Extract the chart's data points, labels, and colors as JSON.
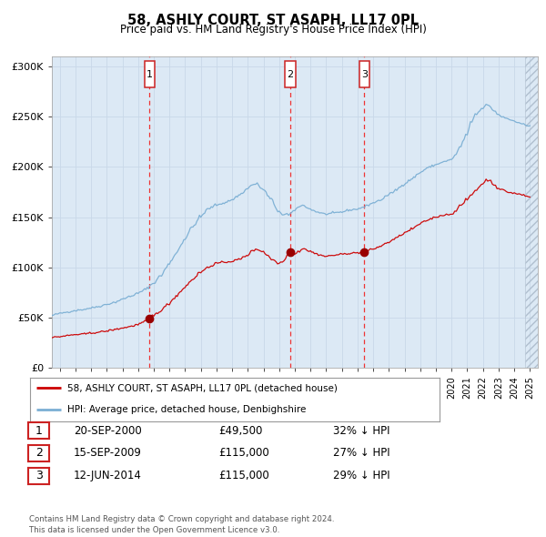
{
  "title": "58, ASHLY COURT, ST ASAPH, LL17 0PL",
  "subtitle": "Price paid vs. HM Land Registry's House Price Index (HPI)",
  "plot_bg_color": "#dce9f5",
  "grid_color": "#c8d8e8",
  "red_line_color": "#cc0000",
  "blue_line_color": "#7bafd4",
  "sale_marker_color": "#990000",
  "vline_color": "#ee3333",
  "ylim": [
    0,
    310000
  ],
  "xlim": [
    1994.5,
    2025.5
  ],
  "yticks": [
    0,
    50000,
    100000,
    150000,
    200000,
    250000,
    300000
  ],
  "ytick_labels": [
    "£0",
    "£50K",
    "£100K",
    "£150K",
    "£200K",
    "£250K",
    "£300K"
  ],
  "sale_points": [
    {
      "date_num": 2000.72,
      "price": 49500,
      "label": "1"
    },
    {
      "date_num": 2009.71,
      "price": 115000,
      "label": "2"
    },
    {
      "date_num": 2014.44,
      "price": 115000,
      "label": "3"
    }
  ],
  "vline_dates": [
    2000.72,
    2009.71,
    2014.44
  ],
  "vline_labels": [
    "1",
    "2",
    "3"
  ],
  "legend_entries": [
    "58, ASHLY COURT, ST ASAPH, LL17 0PL (detached house)",
    "HPI: Average price, detached house, Denbighshire"
  ],
  "table_rows": [
    {
      "num": "1",
      "date": "20-SEP-2000",
      "price": "£49,500",
      "hpi": "32% ↓ HPI"
    },
    {
      "num": "2",
      "date": "15-SEP-2009",
      "price": "£115,000",
      "hpi": "27% ↓ HPI"
    },
    {
      "num": "3",
      "date": "12-JUN-2014",
      "price": "£115,000",
      "hpi": "29% ↓ HPI"
    }
  ],
  "footer": "Contains HM Land Registry data © Crown copyright and database right 2024.\nThis data is licensed under the Open Government Licence v3.0.",
  "hpi_anchors": [
    [
      1994.5,
      52000
    ],
    [
      1995.0,
      54000
    ],
    [
      1995.5,
      55500
    ],
    [
      1996.0,
      57000
    ],
    [
      1996.5,
      58000
    ],
    [
      1997.0,
      59500
    ],
    [
      1997.5,
      61000
    ],
    [
      1998.0,
      63000
    ],
    [
      1998.5,
      65000
    ],
    [
      1999.0,
      68000
    ],
    [
      1999.5,
      71000
    ],
    [
      2000.0,
      74000
    ],
    [
      2000.5,
      78000
    ],
    [
      2001.0,
      84000
    ],
    [
      2001.5,
      92000
    ],
    [
      2002.0,
      103000
    ],
    [
      2002.5,
      115000
    ],
    [
      2003.0,
      128000
    ],
    [
      2003.5,
      140000
    ],
    [
      2004.0,
      150000
    ],
    [
      2004.5,
      158000
    ],
    [
      2005.0,
      162000
    ],
    [
      2005.5,
      164000
    ],
    [
      2006.0,
      167000
    ],
    [
      2006.5,
      172000
    ],
    [
      2007.0,
      178000
    ],
    [
      2007.3,
      182000
    ],
    [
      2007.6,
      183000
    ],
    [
      2008.0,
      178000
    ],
    [
      2008.5,
      168000
    ],
    [
      2009.0,
      156000
    ],
    [
      2009.3,
      152000
    ],
    [
      2009.5,
      153000
    ],
    [
      2009.71,
      152000
    ],
    [
      2010.0,
      157000
    ],
    [
      2010.3,
      160000
    ],
    [
      2010.6,
      162000
    ],
    [
      2011.0,
      158000
    ],
    [
      2011.5,
      155000
    ],
    [
      2012.0,
      153000
    ],
    [
      2012.5,
      154000
    ],
    [
      2013.0,
      155000
    ],
    [
      2013.5,
      157000
    ],
    [
      2014.0,
      158000
    ],
    [
      2014.44,
      160000
    ],
    [
      2015.0,
      164000
    ],
    [
      2015.5,
      167000
    ],
    [
      2016.0,
      172000
    ],
    [
      2016.5,
      177000
    ],
    [
      2017.0,
      183000
    ],
    [
      2017.5,
      188000
    ],
    [
      2018.0,
      194000
    ],
    [
      2018.5,
      199000
    ],
    [
      2019.0,
      202000
    ],
    [
      2019.5,
      205000
    ],
    [
      2020.0,
      207000
    ],
    [
      2020.3,
      212000
    ],
    [
      2020.6,
      220000
    ],
    [
      2021.0,
      232000
    ],
    [
      2021.3,
      244000
    ],
    [
      2021.6,
      252000
    ],
    [
      2022.0,
      258000
    ],
    [
      2022.3,
      262000
    ],
    [
      2022.5,
      260000
    ],
    [
      2022.8,
      255000
    ],
    [
      2023.0,
      252000
    ],
    [
      2023.3,
      250000
    ],
    [
      2023.6,
      248000
    ],
    [
      2024.0,
      246000
    ],
    [
      2024.3,
      244000
    ],
    [
      2024.6,
      243000
    ],
    [
      2025.0,
      241000
    ]
  ],
  "red_anchors": [
    [
      1994.5,
      30000
    ],
    [
      1995.0,
      31000
    ],
    [
      1995.5,
      32000
    ],
    [
      1996.0,
      33000
    ],
    [
      1996.5,
      33500
    ],
    [
      1997.0,
      34500
    ],
    [
      1997.5,
      35500
    ],
    [
      1998.0,
      36500
    ],
    [
      1998.5,
      38000
    ],
    [
      1999.0,
      39500
    ],
    [
      1999.5,
      41000
    ],
    [
      2000.0,
      43000
    ],
    [
      2000.5,
      46000
    ],
    [
      2000.72,
      49500
    ],
    [
      2001.0,
      52000
    ],
    [
      2001.5,
      57000
    ],
    [
      2002.0,
      64000
    ],
    [
      2002.5,
      72000
    ],
    [
      2003.0,
      80000
    ],
    [
      2003.5,
      88000
    ],
    [
      2004.0,
      95000
    ],
    [
      2004.5,
      100000
    ],
    [
      2005.0,
      104000
    ],
    [
      2005.5,
      105000
    ],
    [
      2006.0,
      106000
    ],
    [
      2006.5,
      108000
    ],
    [
      2007.0,
      112000
    ],
    [
      2007.3,
      116000
    ],
    [
      2007.6,
      118000
    ],
    [
      2008.0,
      116000
    ],
    [
      2008.3,
      112000
    ],
    [
      2008.6,
      108000
    ],
    [
      2009.0,
      104000
    ],
    [
      2009.3,
      106000
    ],
    [
      2009.71,
      115000
    ],
    [
      2010.0,
      113000
    ],
    [
      2010.3,
      116000
    ],
    [
      2010.6,
      119000
    ],
    [
      2011.0,
      116000
    ],
    [
      2011.5,
      113000
    ],
    [
      2012.0,
      111000
    ],
    [
      2012.5,
      112000
    ],
    [
      2013.0,
      113000
    ],
    [
      2013.5,
      114000
    ],
    [
      2014.0,
      114500
    ],
    [
      2014.44,
      115000
    ],
    [
      2015.0,
      118000
    ],
    [
      2015.5,
      121000
    ],
    [
      2016.0,
      125000
    ],
    [
      2016.5,
      129000
    ],
    [
      2017.0,
      134000
    ],
    [
      2017.5,
      138000
    ],
    [
      2018.0,
      143000
    ],
    [
      2018.5,
      147000
    ],
    [
      2019.0,
      150000
    ],
    [
      2019.5,
      152000
    ],
    [
      2020.0,
      153000
    ],
    [
      2020.3,
      156000
    ],
    [
      2020.6,
      161000
    ],
    [
      2021.0,
      167000
    ],
    [
      2021.3,
      172000
    ],
    [
      2021.6,
      177000
    ],
    [
      2022.0,
      183000
    ],
    [
      2022.3,
      187000
    ],
    [
      2022.5,
      186000
    ],
    [
      2022.8,
      182000
    ],
    [
      2023.0,
      179000
    ],
    [
      2023.3,
      177000
    ],
    [
      2023.6,
      175000
    ],
    [
      2024.0,
      174000
    ],
    [
      2024.3,
      173000
    ],
    [
      2024.6,
      172000
    ],
    [
      2025.0,
      170000
    ]
  ]
}
